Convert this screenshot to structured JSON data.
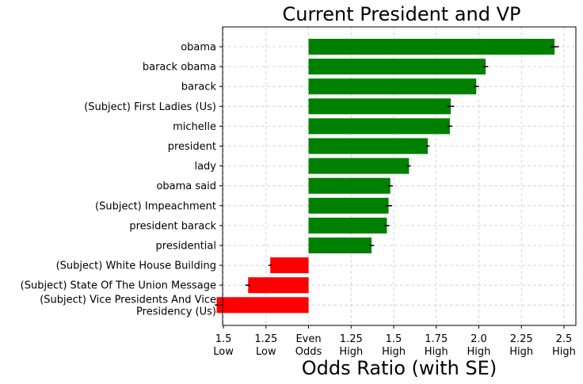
{
  "chart_data": {
    "type": "bar",
    "orientation": "horizontal",
    "title": "Current President and VP",
    "xlabel": "Odds Ratio (with SE)",
    "ylabel": "",
    "grid": true,
    "colors": {
      "high": "#008000",
      "low": "#ff0000",
      "error": "#000000"
    },
    "xlim": [
      -1.01,
      3.14
    ],
    "x_ticks": [
      {
        "value": -1,
        "line1": "1.5",
        "line2": "Low"
      },
      {
        "value": -0.5,
        "line1": "1.25",
        "line2": "Low"
      },
      {
        "value": 0,
        "line1": "Even",
        "line2": "Odds"
      },
      {
        "value": 0.5,
        "line1": "1.25",
        "line2": "High"
      },
      {
        "value": 1,
        "line1": "1.5",
        "line2": "High"
      },
      {
        "value": 1.5,
        "line1": "1.75",
        "line2": "High"
      },
      {
        "value": 2,
        "line1": "2.0",
        "line2": "High"
      },
      {
        "value": 2.5,
        "line1": "2.25",
        "line2": "High"
      },
      {
        "value": 3,
        "line1": "2.5",
        "line2": "High"
      }
    ],
    "bars": [
      {
        "label": "obama",
        "value": 2.89,
        "se": 0.05
      },
      {
        "label": "barack obama",
        "value": 2.08,
        "se": 0.03
      },
      {
        "label": "barack",
        "value": 1.97,
        "se": 0.03
      },
      {
        "label": "(Subject) First Ladies (Us)",
        "value": 1.67,
        "se": 0.04
      },
      {
        "label": "michelle",
        "value": 1.66,
        "se": 0.03
      },
      {
        "label": "president",
        "value": 1.4,
        "se": 0.02
      },
      {
        "label": "lady",
        "value": 1.18,
        "se": 0.02
      },
      {
        "label": "obama said",
        "value": 0.96,
        "se": 0.03
      },
      {
        "label": "(Subject) Impeachment",
        "value": 0.94,
        "se": 0.04
      },
      {
        "label": "president barack",
        "value": 0.92,
        "se": 0.03
      },
      {
        "label": "presidential",
        "value": 0.74,
        "se": 0.03
      },
      {
        "label": "(Subject) White House Building",
        "value": -0.45,
        "se": 0.02
      },
      {
        "label": "(Subject) State Of The Union Message",
        "value": -0.71,
        "se": 0.03
      },
      {
        "label": "(Subject) Vice Presidents And Vice\nPresidency (Us)",
        "value": -1.08,
        "se": 0.02
      }
    ]
  }
}
